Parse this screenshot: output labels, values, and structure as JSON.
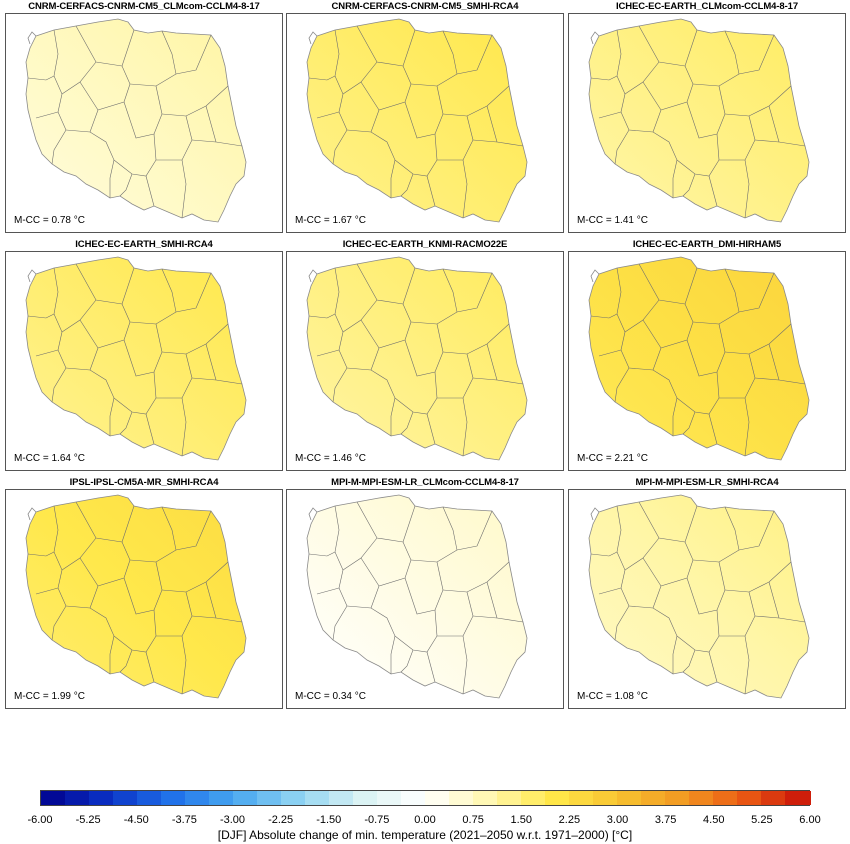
{
  "panels": [
    {
      "title": "CNRM-CERFACS-CNRM-CM5_CLMcom-CCLM4-8-17",
      "value": 0.78,
      "mcc": "M-CC = 0.78 °C"
    },
    {
      "title": "CNRM-CERFACS-CNRM-CM5_SMHI-RCA4",
      "value": 1.67,
      "mcc": "M-CC = 1.67 °C"
    },
    {
      "title": "ICHEC-EC-EARTH_CLMcom-CCLM4-8-17",
      "value": 1.41,
      "mcc": "M-CC = 1.41 °C"
    },
    {
      "title": "ICHEC-EC-EARTH_SMHI-RCA4",
      "value": 1.64,
      "mcc": "M-CC = 1.64 °C"
    },
    {
      "title": "ICHEC-EC-EARTH_KNMI-RACMO22E",
      "value": 1.46,
      "mcc": "M-CC = 1.46 °C"
    },
    {
      "title": "ICHEC-EC-EARTH_DMI-HIRHAM5",
      "value": 2.21,
      "mcc": "M-CC = 2.21 °C"
    },
    {
      "title": "IPSL-IPSL-CM5A-MR_SMHI-RCA4",
      "value": 1.99,
      "mcc": "M-CC = 1.99 °C"
    },
    {
      "title": "MPI-M-MPI-ESM-LR_CLMcom-CCLM4-8-17",
      "value": 0.34,
      "mcc": "M-CC = 0.34 °C"
    },
    {
      "title": "MPI-M-MPI-ESM-LR_SMHI-RCA4",
      "value": 1.08,
      "mcc": "M-CC = 1.08 °C"
    }
  ],
  "colorbar": {
    "label": "[DJF] Absolute change of min. temperature (2021–2050 w.r.t. 1971–2000) [°C]",
    "ticks": [
      "-6.00",
      "-5.25",
      "-4.50",
      "-3.75",
      "-3.00",
      "-2.25",
      "-1.50",
      "-0.75",
      "0.00",
      "0.75",
      "1.50",
      "2.25",
      "3.00",
      "3.75",
      "4.50",
      "5.25",
      "6.00"
    ],
    "min": -6.0,
    "max": 6.0,
    "stops": [
      "#00008b",
      "#0a2fc4",
      "#1e6fe8",
      "#46a6f0",
      "#8fd3f2",
      "#d9f2f3",
      "#ffffff",
      "#fff7b0",
      "#ffe84a",
      "#f7c431",
      "#f29a22",
      "#ea5a14",
      "#c81008"
    ]
  }
}
